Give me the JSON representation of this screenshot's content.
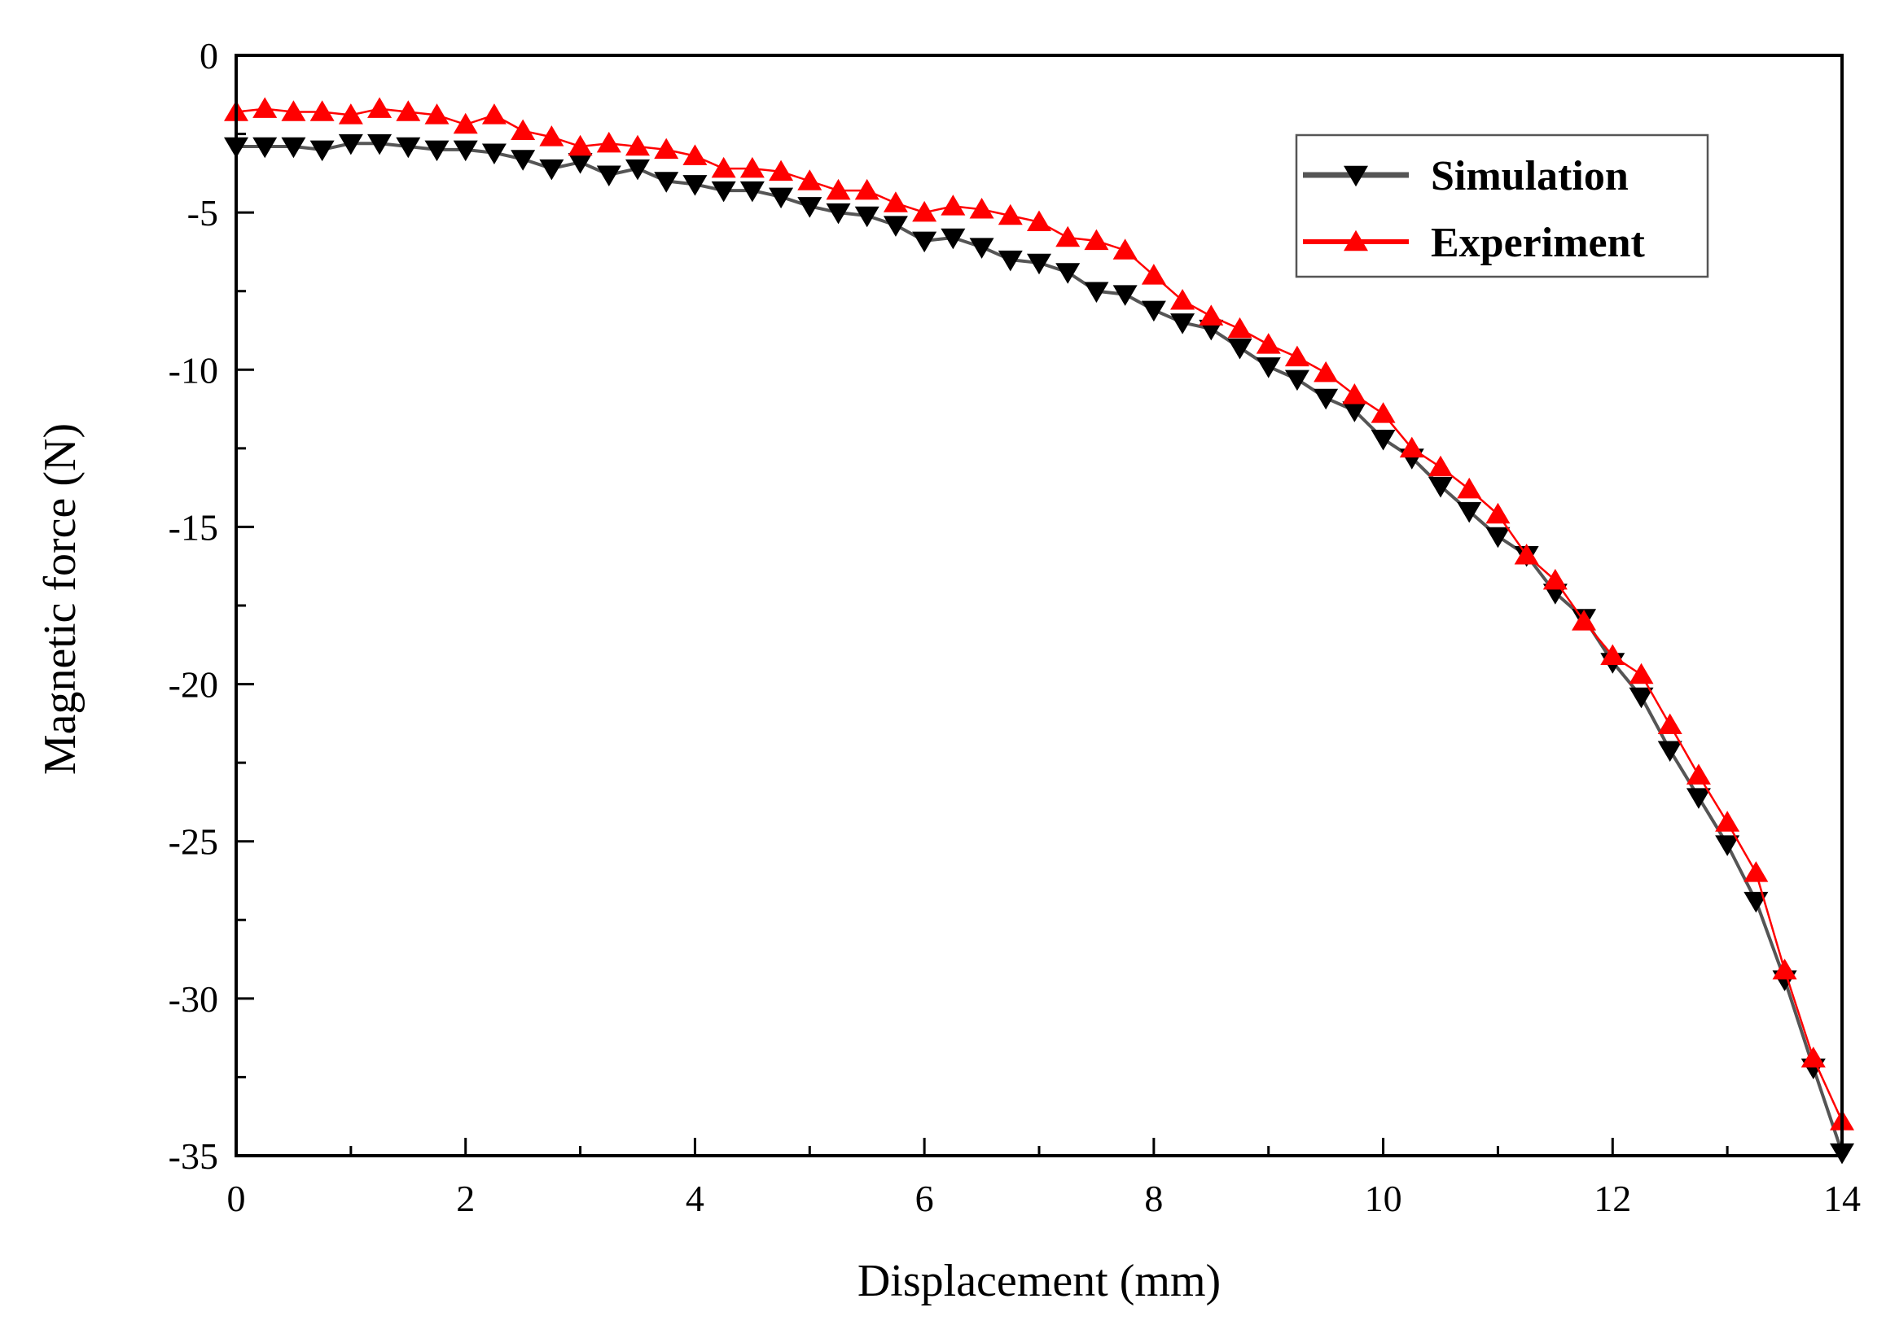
{
  "chart_data": {
    "type": "line",
    "title": "",
    "xlabel": "Displacement (mm)",
    "ylabel": "Magnetic force (N)",
    "xlim": [
      0,
      14
    ],
    "ylim": [
      -35,
      0
    ],
    "x_ticks": [
      0,
      2,
      4,
      6,
      8,
      10,
      12,
      14
    ],
    "x_tick_labels": [
      "0",
      "2",
      "4",
      "6",
      "8",
      "10",
      "12",
      "14"
    ],
    "y_ticks": [
      0,
      -5,
      -10,
      -15,
      -20,
      -25,
      -30,
      -35
    ],
    "y_tick_labels": [
      "0",
      "-5",
      "-10",
      "-15",
      "-20",
      "-25",
      "-30",
      "-35"
    ],
    "grid": false,
    "legend_position": "top-right",
    "x": [
      0,
      0.25,
      0.5,
      0.75,
      1,
      1.25,
      1.5,
      1.75,
      2,
      2.25,
      2.5,
      2.75,
      3,
      3.25,
      3.5,
      3.75,
      4,
      4.25,
      4.5,
      4.75,
      5,
      5.25,
      5.5,
      5.75,
      6,
      6.25,
      6.5,
      6.75,
      7,
      7.25,
      7.5,
      7.75,
      8,
      8.25,
      8.5,
      8.75,
      9,
      9.25,
      9.5,
      9.75,
      10,
      10.25,
      10.5,
      10.75,
      11,
      11.25,
      11.5,
      11.75,
      12,
      12.25,
      12.5,
      12.75,
      13,
      13.25,
      13.5,
      13.75,
      14
    ],
    "series": [
      {
        "name": "Simulation",
        "color": "#000000",
        "line_color": "#555555",
        "marker": "triangle-down",
        "values": [
          -2.9,
          -2.9,
          -2.9,
          -3.0,
          -2.8,
          -2.8,
          -2.9,
          -3.0,
          -3.0,
          -3.1,
          -3.3,
          -3.6,
          -3.4,
          -3.8,
          -3.6,
          -4.0,
          -4.1,
          -4.3,
          -4.3,
          -4.5,
          -4.8,
          -5.0,
          -5.1,
          -5.4,
          -5.9,
          -5.8,
          -6.1,
          -6.5,
          -6.6,
          -6.9,
          -7.5,
          -7.6,
          -8.1,
          -8.5,
          -8.7,
          -9.3,
          -9.9,
          -10.3,
          -10.9,
          -11.3,
          -12.2,
          -12.8,
          -13.7,
          -14.5,
          -15.3,
          -15.9,
          -17.1,
          -17.9,
          -19.3,
          -20.4,
          -22.1,
          -23.6,
          -25.1,
          -26.9,
          -29.4,
          -32.2,
          -34.9
        ]
      },
      {
        "name": "Experiment",
        "color": "#ff0000",
        "line_color": "#ff0000",
        "marker": "triangle-up",
        "values": [
          -1.8,
          -1.7,
          -1.8,
          -1.8,
          -1.9,
          -1.7,
          -1.8,
          -1.9,
          -2.2,
          -1.9,
          -2.4,
          -2.6,
          -2.9,
          -2.8,
          -2.9,
          -3.0,
          -3.2,
          -3.6,
          -3.6,
          -3.7,
          -4.0,
          -4.3,
          -4.3,
          -4.7,
          -5.0,
          -4.8,
          -4.9,
          -5.1,
          -5.3,
          -5.8,
          -5.9,
          -6.2,
          -7.0,
          -7.8,
          -8.3,
          -8.7,
          -9.2,
          -9.6,
          -10.1,
          -10.8,
          -11.4,
          -12.5,
          -13.1,
          -13.8,
          -14.6,
          -15.9,
          -16.7,
          -18.0,
          -19.1,
          -19.7,
          -21.3,
          -22.9,
          -24.4,
          -26.0,
          -29.1,
          -31.9,
          -33.9
        ]
      }
    ]
  }
}
